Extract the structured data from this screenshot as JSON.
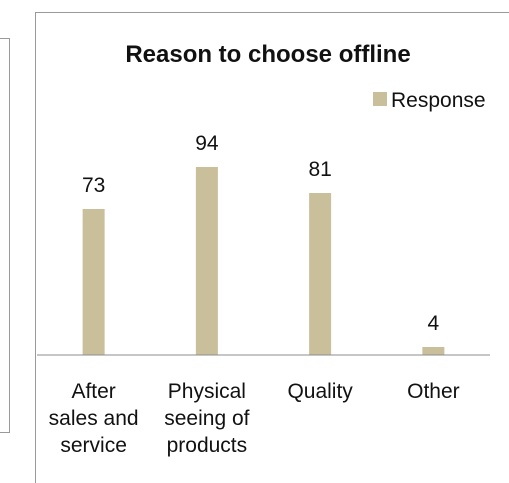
{
  "chart_data": {
    "type": "bar",
    "title": "Reason to choose offline",
    "categories": [
      [
        "After",
        "sales and",
        "service"
      ],
      [
        "Physical",
        "seeing of",
        "products"
      ],
      [
        "Quality"
      ],
      [
        "Other"
      ]
    ],
    "series": [
      {
        "name": "Response",
        "values": [
          73,
          94,
          81,
          4
        ],
        "color": "#C9BF9A"
      }
    ],
    "ylim": [
      0,
      100
    ],
    "xlabel": "",
    "ylabel": "",
    "data_labels": true,
    "grid": false,
    "legend_position": "top-right",
    "axis_color": "#8c8c8c"
  }
}
